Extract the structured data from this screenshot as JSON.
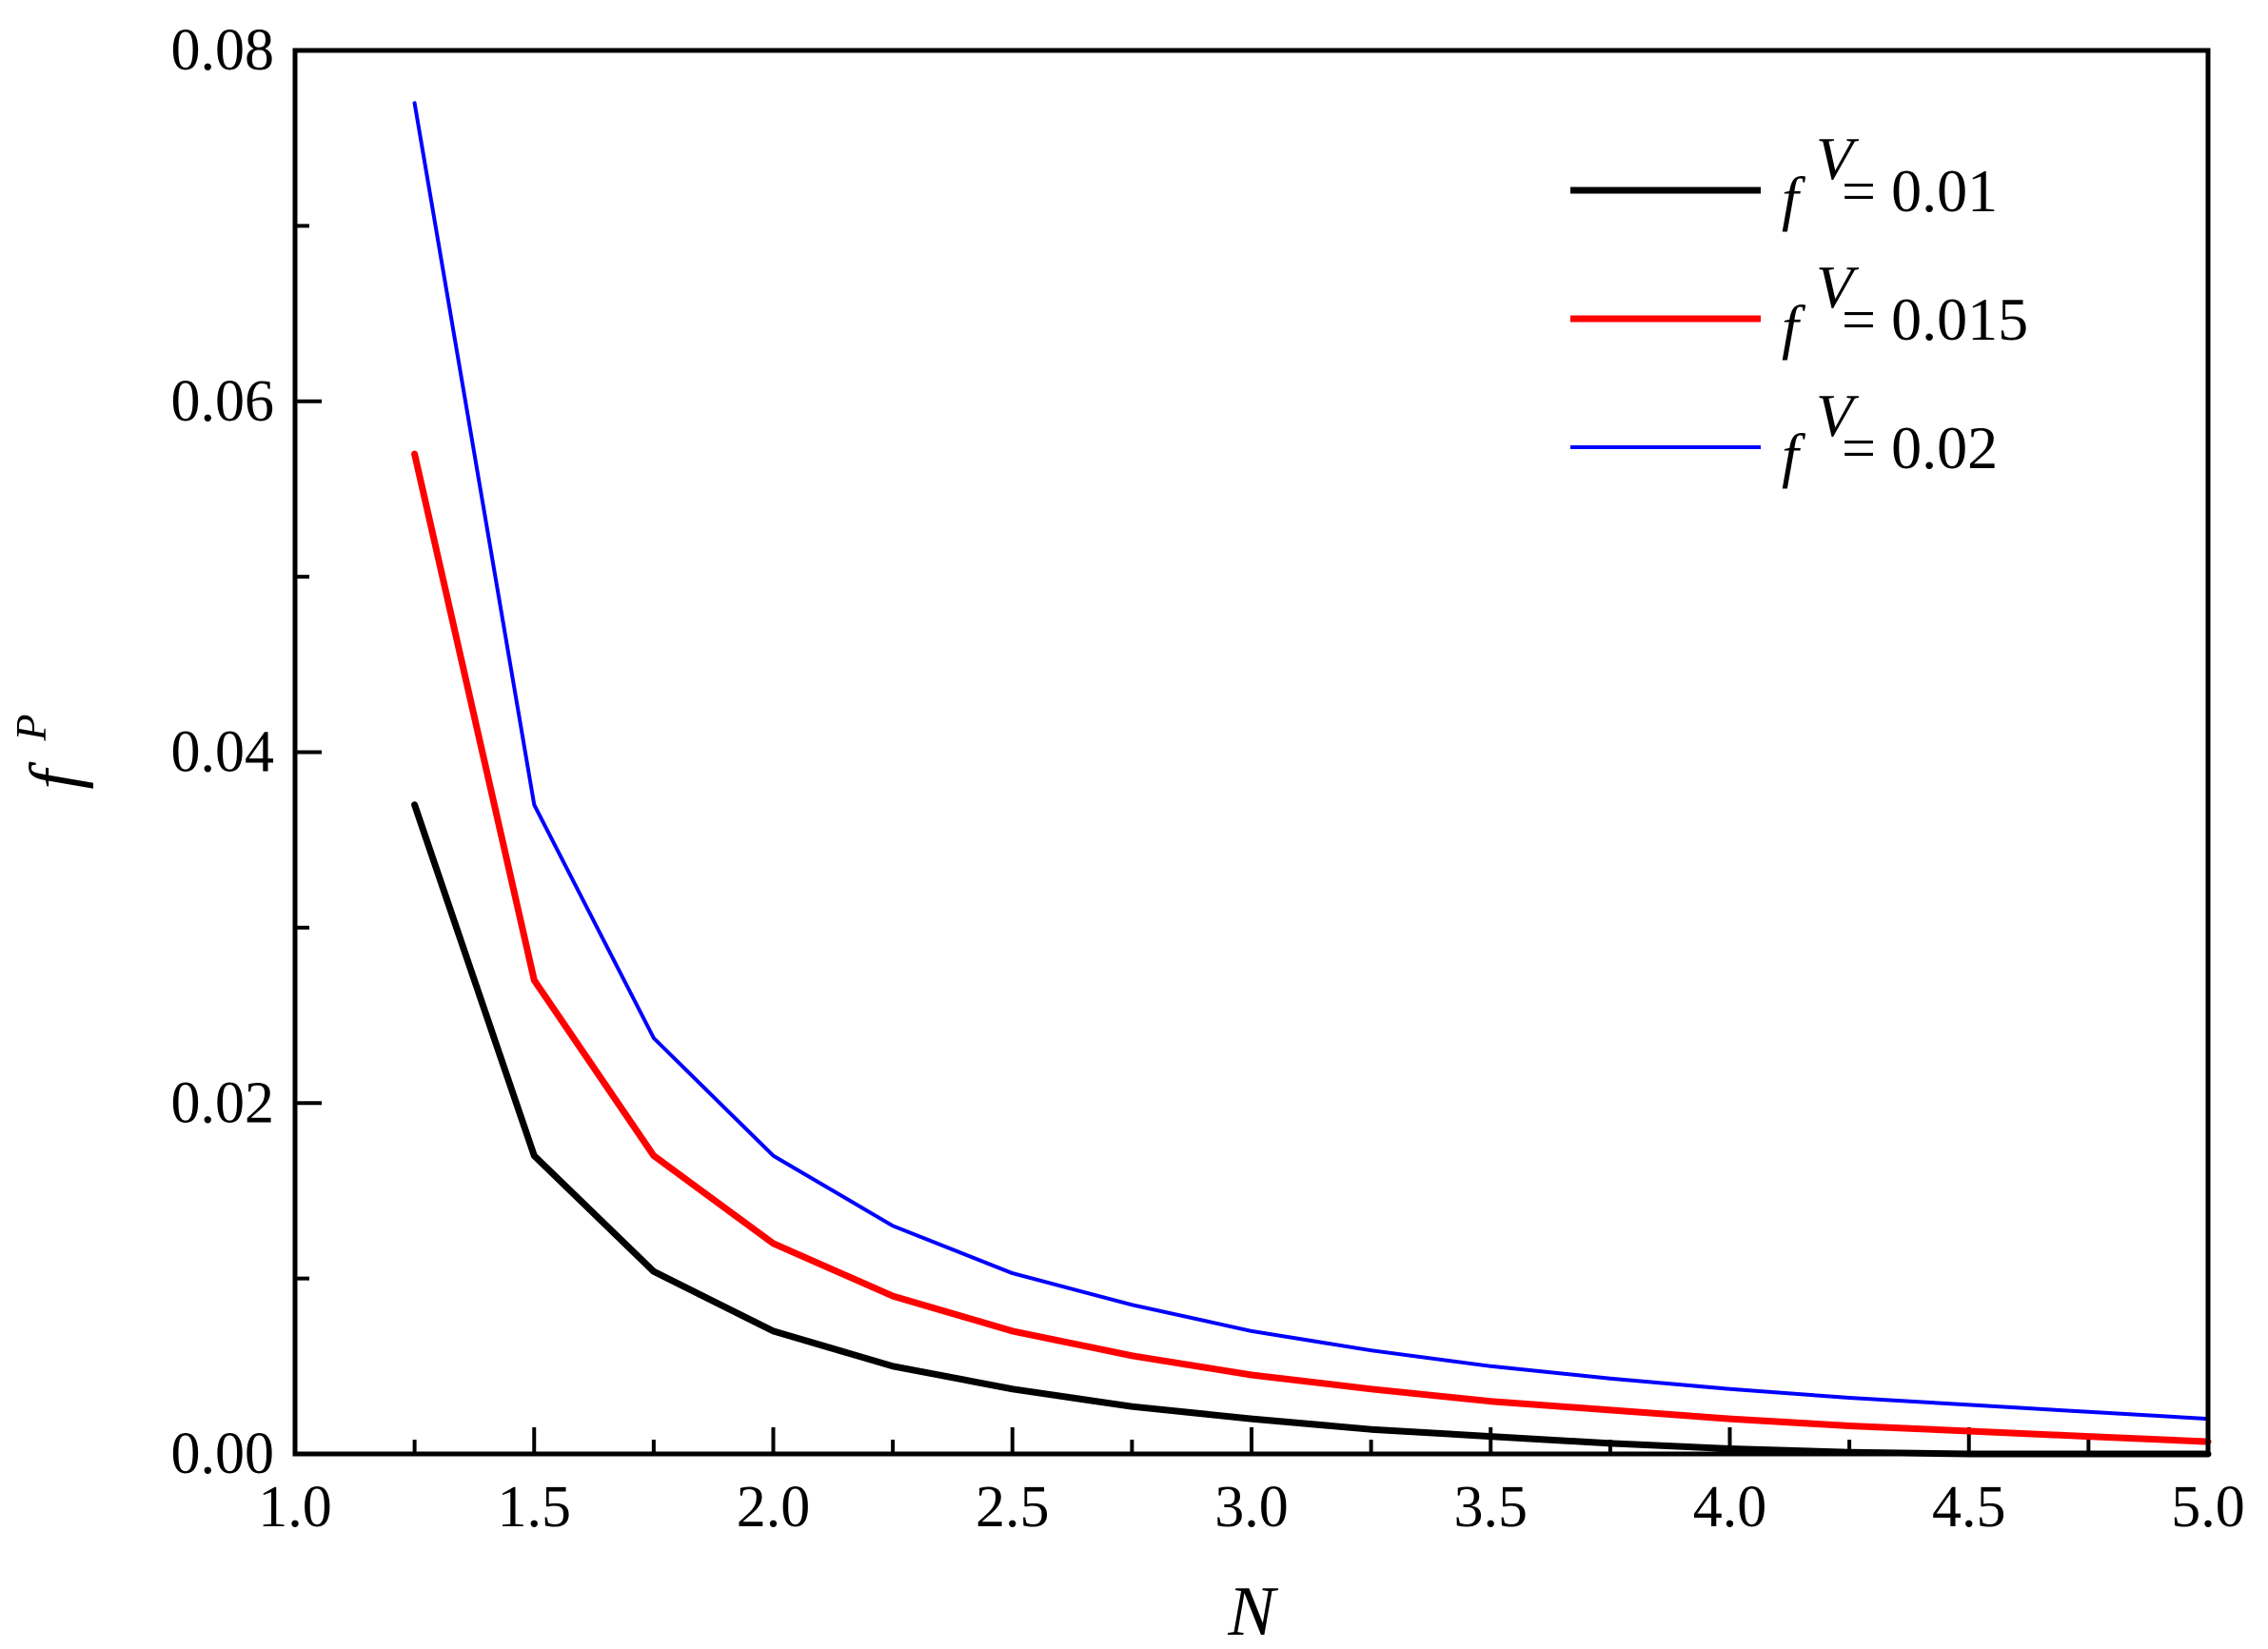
{
  "chart_data": {
    "type": "line",
    "xlabel": "N",
    "ylabel": {
      "base": "f",
      "superscript": "P"
    },
    "xlim": [
      1.0,
      5.0
    ],
    "ylim": [
      0.0,
      0.08
    ],
    "x_ticks": [
      "1.0",
      "1.5",
      "2.0",
      "2.5",
      "3.0",
      "3.5",
      "4.0",
      "4.5",
      "5.0"
    ],
    "y_ticks": [
      "0.00",
      "0.02",
      "0.04",
      "0.06",
      "0.08"
    ],
    "x_tick_values": [
      1.0,
      1.5,
      2.0,
      2.5,
      3.0,
      3.5,
      4.0,
      4.5,
      5.0
    ],
    "y_tick_values": [
      0.0,
      0.02,
      0.04,
      0.06,
      0.08
    ],
    "x_minor_tick_values": [
      1.25,
      1.75,
      2.25,
      2.75,
      3.25,
      3.75,
      4.25,
      4.75
    ],
    "y_minor_tick_values": [
      0.01,
      0.03,
      0.05,
      0.07
    ],
    "grid": false,
    "legend_position": "top-right",
    "x": [
      1.25,
      1.5,
      1.75,
      2.0,
      2.25,
      2.5,
      2.75,
      3.0,
      3.25,
      3.5,
      3.75,
      4.0,
      4.25,
      4.5,
      4.75,
      5.0
    ],
    "series": [
      {
        "name": "= 0.01",
        "legend_base": "f",
        "legend_superscript": "V",
        "color": "#000000",
        "values": [
          0.037,
          0.017,
          0.0104,
          0.007,
          0.005,
          0.0037,
          0.0027,
          0.002,
          0.0014,
          0.001,
          0.0006,
          0.0003,
          0.0001,
          0.0,
          0.0,
          0.0
        ]
      },
      {
        "name": "= 0.015",
        "legend_base": "f",
        "legend_superscript": "V",
        "color": "#ff0000",
        "values": [
          0.057,
          0.027,
          0.017,
          0.012,
          0.009,
          0.007,
          0.0056,
          0.0045,
          0.0037,
          0.003,
          0.0025,
          0.002,
          0.0016,
          0.0013,
          0.001,
          0.0007
        ]
      },
      {
        "name": "= 0.02",
        "legend_base": "f",
        "legend_superscript": "V",
        "color": "#0000ff",
        "values": [
          0.077,
          0.037,
          0.0237,
          0.017,
          0.013,
          0.0103,
          0.0085,
          0.007,
          0.0059,
          0.005,
          0.0043,
          0.0037,
          0.0032,
          0.0028,
          0.0024,
          0.002
        ]
      }
    ]
  }
}
